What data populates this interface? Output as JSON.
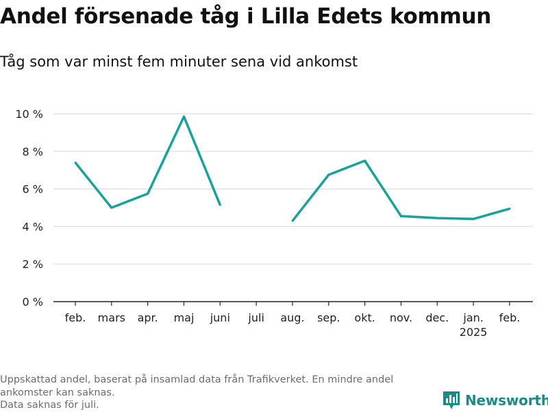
{
  "title": "Andel försenade tåg i Lilla Edets kommun",
  "subtitle": "Tåg som var minst fem minuter sena vid ankomst",
  "notes": [
    "Uppskattad andel, baserat på insamlad data från Trafikverket. En mindre andel",
    "ankomster kan saknas.",
    "Data saknas för juli."
  ],
  "brand": "Newsworthy",
  "colors": {
    "line": "#17a398",
    "grid": "#dddddd",
    "axis": "#222222",
    "brand": "#1a8c86"
  },
  "chart_data": {
    "type": "line",
    "categories": [
      "feb.",
      "mars",
      "apr.",
      "maj",
      "juni",
      "juli",
      "aug.",
      "sep.",
      "okt.",
      "nov.",
      "dec.",
      "jan.",
      "feb."
    ],
    "category_sublabels": [
      "",
      "",
      "",
      "",
      "",
      "",
      "",
      "",
      "",
      "",
      "",
      "2025",
      ""
    ],
    "values": [
      7.4,
      5.0,
      5.75,
      9.85,
      5.15,
      null,
      4.3,
      6.75,
      7.5,
      4.55,
      4.45,
      4.4,
      4.95
    ],
    "yticks": [
      0,
      2,
      4,
      6,
      8,
      10
    ],
    "ytick_labels": [
      "0 %",
      "2 %",
      "4 %",
      "6 %",
      "8 %",
      "10 %"
    ],
    "ylim": [
      0,
      10
    ],
    "grid": true
  }
}
